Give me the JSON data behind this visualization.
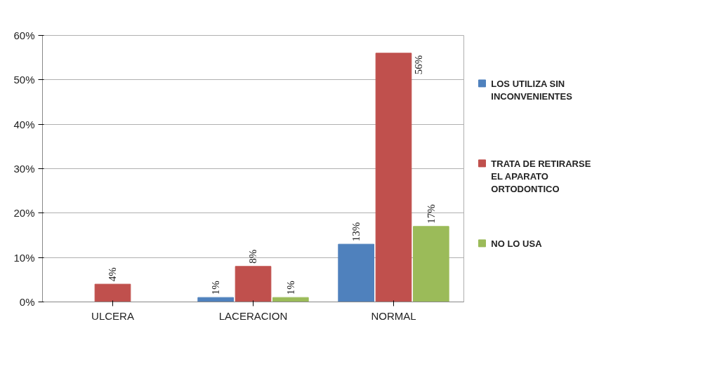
{
  "chart_data": {
    "type": "bar",
    "categories": [
      "ULCERA",
      "LACERACION",
      "NORMAL"
    ],
    "series": [
      {
        "name": "LOS UTILIZA SIN INCONVENIENTES",
        "color": "#4f81bd",
        "values": [
          null,
          1,
          13
        ],
        "value_labels": [
          null,
          "1%",
          "13%"
        ]
      },
      {
        "name": "TRATA DE RETIRARSE EL APARATO ORTODONTICO",
        "color": "#c0504d",
        "values": [
          4,
          8,
          56
        ],
        "value_labels": [
          "4%",
          "8%",
          "56%"
        ]
      },
      {
        "name": "NO LO USA",
        "color": "#9bbb59",
        "values": [
          null,
          1,
          17
        ],
        "value_labels": [
          null,
          "1%",
          "17%"
        ]
      }
    ],
    "ylim": [
      0,
      60
    ],
    "yticks": [
      {
        "value": 0,
        "label": "0%"
      },
      {
        "value": 10,
        "label": "10%"
      },
      {
        "value": 20,
        "label": "20%"
      },
      {
        "value": 30,
        "label": "30%"
      },
      {
        "value": 40,
        "label": "40%"
      },
      {
        "value": 50,
        "label": "50%"
      },
      {
        "value": 60,
        "label": "60%"
      }
    ],
    "grid": "y",
    "legend": "right"
  }
}
